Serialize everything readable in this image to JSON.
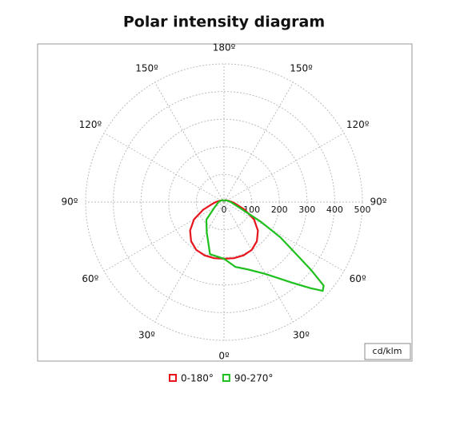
{
  "chart_data": {
    "type": "polar",
    "title": "Polar intensity diagram",
    "unit": "cd/klm",
    "rlim": [
      0,
      500
    ],
    "rticks": [
      0,
      100,
      200,
      300,
      400,
      500
    ],
    "angle_ticks": [
      {
        "value": 0,
        "label": "0º"
      },
      {
        "value": 30,
        "label": "30º"
      },
      {
        "value": 60,
        "label": "60º"
      },
      {
        "value": 90,
        "label": "90º"
      },
      {
        "value": 120,
        "label": "120º"
      },
      {
        "value": 150,
        "label": "150º"
      },
      {
        "value": 180,
        "label": "180º"
      }
    ],
    "grid": true,
    "legend": "bottom",
    "series": [
      {
        "name": "0-180°",
        "color": "#e8141c",
        "angles": [
          -180,
          -150,
          -120,
          -105,
          -90,
          -80,
          -70,
          -60,
          -50,
          -40,
          -30,
          -20,
          -10,
          0,
          10,
          20,
          30,
          40,
          50,
          60,
          70,
          80,
          90,
          105,
          120,
          150,
          180
        ],
        "values": [
          5,
          8,
          12,
          18,
          30,
          45,
          80,
          125,
          160,
          185,
          200,
          205,
          206,
          205,
          206,
          205,
          200,
          185,
          160,
          125,
          80,
          45,
          30,
          18,
          12,
          8,
          5
        ]
      },
      {
        "name": "90-270°",
        "color": "#1ec01e",
        "angles": [
          -180,
          -150,
          -120,
          -90,
          -60,
          -45,
          -30,
          -15,
          0,
          10,
          20,
          30,
          40,
          45,
          48,
          50,
          52,
          55,
          58,
          62,
          70,
          90,
          120,
          150,
          180
        ],
        "values": [
          5,
          8,
          12,
          20,
          40,
          90,
          125,
          195,
          205,
          238,
          260,
          300,
          380,
          440,
          480,
          470,
          400,
          300,
          240,
          150,
          60,
          25,
          12,
          8,
          5
        ]
      }
    ]
  }
}
